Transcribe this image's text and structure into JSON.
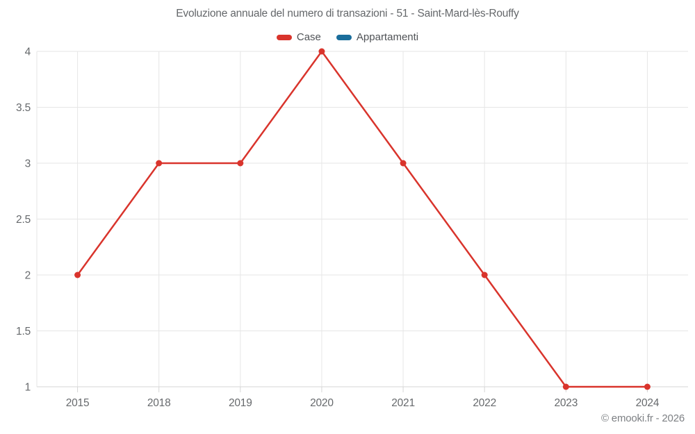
{
  "chart_data": {
    "type": "line",
    "title": "Evoluzione annuale del numero di transazioni - 51 - Saint-Mard-lès-Rouffy",
    "xlabel": "",
    "ylabel": "",
    "categories": [
      "2015",
      "2018",
      "2019",
      "2020",
      "2021",
      "2022",
      "2023",
      "2024"
    ],
    "series": [
      {
        "name": "Case",
        "color": "#d9342c",
        "values": [
          2,
          3,
          3,
          4,
          3,
          2,
          1,
          1
        ]
      },
      {
        "name": "Appartamenti",
        "color": "#1a6d9b",
        "values": []
      }
    ],
    "yticks": [
      1,
      1.5,
      2,
      2.5,
      3,
      3.5,
      4
    ],
    "ylim": [
      1,
      4
    ],
    "grid": true,
    "legend_position": "top"
  },
  "colors": {
    "gridline": "#e6e6e6",
    "axis_line": "#d6d6d6",
    "tick_label": "#66696c"
  },
  "footer": {
    "copyright": "© emooki.fr - 2026"
  }
}
